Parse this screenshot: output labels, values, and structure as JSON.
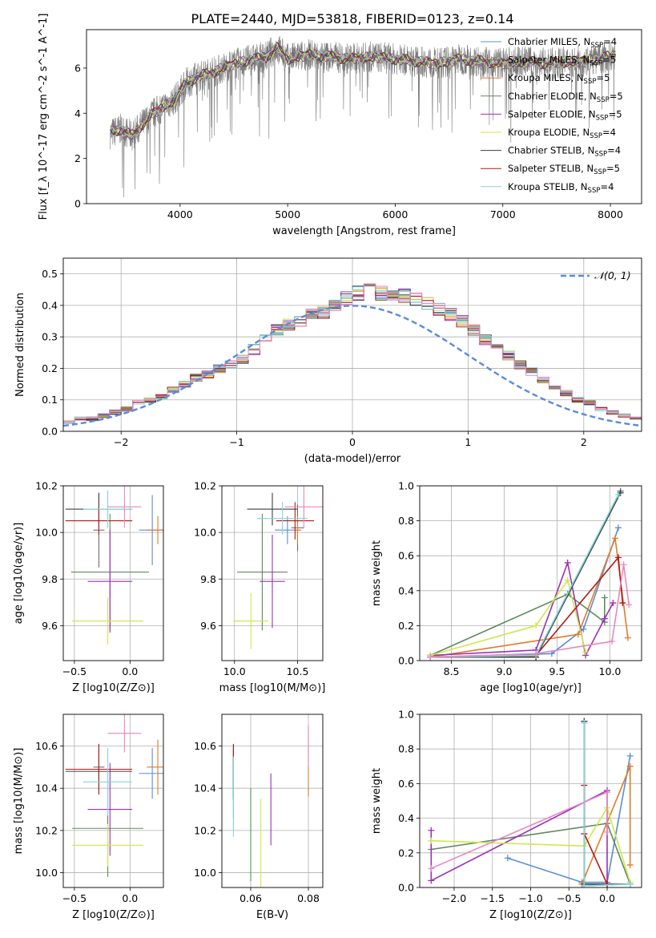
{
  "figure": {
    "title": "PLATE=2440, MJD=53818, FIBERID=0123, z=0.14"
  },
  "series": [
    {
      "name": "Chabrier MILES",
      "nssp": "4",
      "color": "#5b8bd8"
    },
    {
      "name": "Salpeter MILES",
      "nssp": "5",
      "color": "#6e6e6e"
    },
    {
      "name": "Kroupa MILES",
      "nssp": "5",
      "color": "#e07b28"
    },
    {
      "name": "Chabrier ELODIE",
      "nssp": "5",
      "color": "#5e8a5e"
    },
    {
      "name": "Salpeter ELODIE",
      "nssp": "5",
      "color": "#9b30b8"
    },
    {
      "name": "Kroupa ELODIE",
      "nssp": "4",
      "color": "#cde84a"
    },
    {
      "name": "Chabrier STELIB",
      "nssp": "4",
      "color": "#3f3f3f"
    },
    {
      "name": "Salpeter STELIB",
      "nssp": "5",
      "color": "#b01a1a"
    },
    {
      "name": "Kroupa STELIB",
      "nssp": "4",
      "color": "#7fd6e0"
    },
    {
      "name": "",
      "color": "#e887c0"
    }
  ],
  "chart_data": [
    {
      "id": "spectrum",
      "type": "line",
      "xlabel": "wavelength [Angstrom, rest frame]",
      "ylabel": "Flux [f_λ 10^-17 erg cm^-2 s^-1 A^-1]",
      "xlim": [
        3130,
        8290
      ],
      "ylim": [
        0,
        7.7
      ],
      "xticks": [
        4000,
        5000,
        6000,
        7000,
        8000
      ],
      "yticks": [
        0,
        2,
        4,
        6
      ],
      "grid": false,
      "legend": "top-right",
      "continuum": [
        [
          3350,
          3.1
        ],
        [
          3450,
          3.3
        ],
        [
          3550,
          3.0
        ],
        [
          3650,
          3.5
        ],
        [
          3750,
          4.0
        ],
        [
          3850,
          4.3
        ],
        [
          3950,
          4.6
        ],
        [
          4050,
          5.3
        ],
        [
          4150,
          5.6
        ],
        [
          4300,
          5.8
        ],
        [
          4450,
          6.1
        ],
        [
          4600,
          6.3
        ],
        [
          4800,
          6.5
        ],
        [
          4900,
          6.9
        ],
        [
          5000,
          6.4
        ],
        [
          5200,
          6.6
        ],
        [
          5400,
          6.5
        ],
        [
          5600,
          6.4
        ],
        [
          5800,
          6.5
        ],
        [
          6000,
          6.4
        ],
        [
          6200,
          6.3
        ],
        [
          6400,
          6.2
        ],
        [
          6600,
          6.4
        ],
        [
          6800,
          6.3
        ],
        [
          7000,
          6.2
        ],
        [
          7200,
          6.3
        ],
        [
          7400,
          6.2
        ],
        [
          7700,
          6.3
        ],
        [
          7900,
          6.4
        ],
        [
          8050,
          6.6
        ]
      ],
      "data_xrange": [
        3350,
        8050
      ]
    },
    {
      "id": "residuals",
      "type": "histogram",
      "xlabel": "(data-model)/error",
      "ylabel": "Normed distribution",
      "xlim": [
        -2.5,
        2.5
      ],
      "ylim": [
        0,
        0.55
      ],
      "xticks": [
        -2,
        -1,
        0,
        1,
        2
      ],
      "yticks": [
        0.0,
        0.1,
        0.2,
        0.3,
        0.4,
        0.5
      ],
      "grid": true,
      "legend": "top-right",
      "reference_label": "𝒩(0, 1)",
      "bin_width": 0.1,
      "base_distribution": [
        0.02,
        0.02,
        0.03,
        0.03,
        0.04,
        0.04,
        0.05,
        0.06,
        0.07,
        0.09,
        0.1,
        0.11,
        0.13,
        0.15,
        0.17,
        0.18,
        0.2,
        0.21,
        0.23,
        0.26,
        0.29,
        0.32,
        0.34,
        0.35,
        0.37,
        0.38,
        0.4,
        0.42,
        0.44,
        0.45,
        0.44,
        0.44,
        0.43,
        0.42,
        0.41,
        0.39,
        0.37,
        0.35,
        0.32,
        0.29,
        0.27,
        0.24,
        0.21,
        0.19,
        0.16,
        0.14,
        0.12,
        0.1,
        0.09,
        0.07,
        0.06,
        0.05,
        0.04,
        0.04,
        0.03,
        0.03
      ]
    },
    {
      "id": "age_vs_Z",
      "type": "errorbar",
      "xlabel": "Z [log10(Z/Z⊙)]",
      "ylabel": "age [log10(age/yr)]",
      "xlim": [
        -0.6,
        0.3
      ],
      "ylim": [
        9.45,
        10.2
      ],
      "xticks": [
        -0.5,
        0.0
      ],
      "yticks": [
        9.6,
        9.8,
        10.0,
        10.2
      ],
      "grid": true,
      "points": [
        {
          "s": 0,
          "x": 0.2,
          "y": 10.01,
          "xe": 0.12,
          "ye": 0.15
        },
        {
          "s": 1,
          "x": -0.28,
          "y": 10.01,
          "xe": 0.05,
          "ye": 0.16
        },
        {
          "s": 2,
          "x": 0.25,
          "y": 10.01,
          "xe": 0.1,
          "ye": 0.06
        },
        {
          "s": 3,
          "x": -0.18,
          "y": 9.83,
          "xe": 0.35,
          "ye": 0.25
        },
        {
          "s": 4,
          "x": -0.18,
          "y": 9.79,
          "xe": 0.2,
          "ye": 0.22
        },
        {
          "s": 5,
          "x": -0.2,
          "y": 9.62,
          "xe": 0.32,
          "ye": 0.1
        },
        {
          "s": 6,
          "x": -0.28,
          "y": 10.1,
          "xe": 0.3,
          "ye": 0.07
        },
        {
          "s": 7,
          "x": -0.28,
          "y": 10.05,
          "xe": 0.3,
          "ye": 0.06
        },
        {
          "s": 8,
          "x": -0.2,
          "y": 10.1,
          "xe": 0.22,
          "ye": 0.08
        },
        {
          "s": 9,
          "x": -0.05,
          "y": 10.11,
          "xe": 0.15,
          "ye": 0.09
        }
      ]
    },
    {
      "id": "age_vs_mass",
      "type": "errorbar",
      "xlabel": "mass [log10(M/M⊙)]",
      "ylabel": "",
      "xlim": [
        9.9,
        10.7
      ],
      "ylim": [
        9.45,
        10.2
      ],
      "xticks": [
        10.0,
        10.5
      ],
      "yticks": [
        9.6,
        9.8,
        10.0,
        10.2
      ],
      "grid": true,
      "points": [
        {
          "s": 0,
          "x": 10.42,
          "y": 10.01,
          "xe": 0.1,
          "ye": 0.06
        },
        {
          "s": 1,
          "x": 10.5,
          "y": 10.02,
          "xe": 0.05,
          "ye": 0.1
        },
        {
          "s": 2,
          "x": 10.5,
          "y": 10.01,
          "xe": 0.03,
          "ye": 0.06
        },
        {
          "s": 3,
          "x": 10.22,
          "y": 9.83,
          "xe": 0.2,
          "ye": 0.25
        },
        {
          "s": 4,
          "x": 10.3,
          "y": 9.79,
          "xe": 0.1,
          "ye": 0.2
        },
        {
          "s": 5,
          "x": 10.13,
          "y": 9.62,
          "xe": 0.14,
          "ye": 0.12
        },
        {
          "s": 6,
          "x": 10.3,
          "y": 10.1,
          "xe": 0.2,
          "ye": 0.07
        },
        {
          "s": 7,
          "x": 10.48,
          "y": 10.05,
          "xe": 0.15,
          "ye": 0.08
        },
        {
          "s": 8,
          "x": 10.38,
          "y": 10.06,
          "xe": 0.2,
          "ye": 0.07
        },
        {
          "s": 9,
          "x": 10.55,
          "y": 10.11,
          "xe": 0.15,
          "ye": 0.09
        }
      ]
    },
    {
      "id": "mass_weight_vs_age",
      "type": "line",
      "xlabel": "age [log10(age/yr)]",
      "ylabel": "mass weight",
      "xlim": [
        8.2,
        10.3
      ],
      "ylim": [
        0,
        1.0
      ],
      "xticks": [
        8.5,
        9.0,
        9.5,
        10.0
      ],
      "yticks": [
        0.0,
        0.2,
        0.4,
        0.6,
        0.8,
        1.0
      ],
      "grid": true,
      "lines": [
        {
          "s": 0,
          "pts": [
            [
              8.3,
              0.02
            ],
            [
              9.45,
              0.04
            ],
            [
              9.75,
              0.18
            ],
            [
              10.08,
              0.76
            ]
          ]
        },
        {
          "s": 1,
          "pts": [
            [
              8.3,
              0.02
            ],
            [
              9.3,
              0.02
            ],
            [
              10.1,
              0.97
            ]
          ]
        },
        {
          "s": 2,
          "pts": [
            [
              8.3,
              0.02
            ],
            [
              9.7,
              0.15
            ],
            [
              10.05,
              0.7
            ],
            [
              10.17,
              0.13
            ]
          ]
        },
        {
          "s": 3,
          "pts": [
            [
              8.3,
              0.03
            ],
            [
              9.6,
              0.38
            ],
            [
              9.95,
              0.22
            ],
            [
              9.95,
              0.36
            ]
          ]
        },
        {
          "s": 4,
          "pts": [
            [
              8.3,
              0.03
            ],
            [
              9.3,
              0.06
            ],
            [
              9.6,
              0.56
            ],
            [
              9.77,
              0.03
            ],
            [
              9.95,
              0.24
            ],
            [
              10.03,
              0.33
            ]
          ]
        },
        {
          "s": 5,
          "pts": [
            [
              8.3,
              0.03
            ],
            [
              9.3,
              0.2
            ],
            [
              9.6,
              0.46
            ],
            [
              9.77,
              0.05
            ]
          ]
        },
        {
          "s": 6,
          "pts": [
            [
              8.3,
              0.02
            ],
            [
              9.3,
              0.02
            ],
            [
              10.1,
              0.96
            ]
          ]
        },
        {
          "s": 7,
          "pts": [
            [
              8.3,
              0.02
            ],
            [
              9.3,
              0.03
            ],
            [
              10.08,
              0.59
            ],
            [
              10.12,
              0.33
            ]
          ]
        },
        {
          "s": 8,
          "pts": [
            [
              8.3,
              0.02
            ],
            [
              9.3,
              0.03
            ],
            [
              10.08,
              0.95
            ]
          ]
        },
        {
          "s": 9,
          "pts": [
            [
              8.3,
              0.02
            ],
            [
              9.3,
              0.04
            ],
            [
              10.02,
              0.11
            ],
            [
              10.13,
              0.55
            ],
            [
              10.18,
              0.32
            ]
          ]
        }
      ]
    },
    {
      "id": "mass_vs_Z",
      "type": "errorbar",
      "xlabel": "Z [log10(Z/Z⊙)]",
      "ylabel": "mass [log10(M/M⊙)]",
      "xlim": [
        -0.6,
        0.3
      ],
      "ylim": [
        9.93,
        10.75
      ],
      "xticks": [
        -0.5,
        0.0
      ],
      "yticks": [
        10.0,
        10.2,
        10.4,
        10.6
      ],
      "grid": true,
      "points": [
        {
          "s": 0,
          "x": 0.2,
          "y": 10.47,
          "xe": 0.12,
          "ye": 0.12
        },
        {
          "s": 1,
          "x": -0.28,
          "y": 10.5,
          "xe": 0.05,
          "ye": 0.1
        },
        {
          "s": 2,
          "x": 0.25,
          "y": 10.5,
          "xe": 0.1,
          "ye": 0.13
        },
        {
          "s": 3,
          "x": -0.2,
          "y": 10.21,
          "xe": 0.32,
          "ye": 0.23
        },
        {
          "s": 4,
          "x": -0.18,
          "y": 10.3,
          "xe": 0.2,
          "ye": 0.22
        },
        {
          "s": 5,
          "x": -0.2,
          "y": 10.13,
          "xe": 0.32,
          "ye": 0.1
        },
        {
          "s": 6,
          "x": -0.28,
          "y": 10.48,
          "xe": 0.3,
          "ye": 0.1
        },
        {
          "s": 7,
          "x": -0.28,
          "y": 10.49,
          "xe": 0.3,
          "ye": 0.12
        },
        {
          "s": 8,
          "x": -0.2,
          "y": 10.43,
          "xe": 0.22,
          "ye": 0.16
        },
        {
          "s": 9,
          "x": -0.05,
          "y": 10.66,
          "xe": 0.15,
          "ye": 0.09
        }
      ]
    },
    {
      "id": "mass_vs_ebv",
      "type": "errorbar",
      "xlabel": "E(B-V)",
      "ylabel": "",
      "xlim": [
        0.05,
        0.085
      ],
      "ylim": [
        9.93,
        10.75
      ],
      "xticks": [
        0.06,
        0.08
      ],
      "yticks": [
        10.0,
        10.2,
        10.4,
        10.6
      ],
      "grid": true,
      "points": [
        {
          "s": 0,
          "x": 0.054,
          "y": 10.4,
          "xe": 0,
          "ye": 0.14
        },
        {
          "s": 1,
          "x": 0.054,
          "y": 10.46,
          "xe": 0,
          "ye": 0.12
        },
        {
          "s": 2,
          "x": 0.08,
          "y": 10.52,
          "xe": 0,
          "ye": 0.16
        },
        {
          "s": 3,
          "x": 0.06,
          "y": 10.18,
          "xe": 0,
          "ye": 0.22
        },
        {
          "s": 4,
          "x": 0.067,
          "y": 10.3,
          "xe": 0,
          "ye": 0.17
        },
        {
          "s": 5,
          "x": 0.0635,
          "y": 10.12,
          "xe": 0,
          "ye": 0.23
        },
        {
          "s": 6,
          "x": 0.054,
          "y": 10.48,
          "xe": 0,
          "ye": 0.13
        },
        {
          "s": 7,
          "x": 0.054,
          "y": 10.5,
          "xe": 0,
          "ye": 0.1
        },
        {
          "s": 8,
          "x": 0.054,
          "y": 10.36,
          "xe": 0,
          "ye": 0.19
        },
        {
          "s": 9,
          "x": 0.08,
          "y": 10.6,
          "xe": 0,
          "ye": 0.1
        }
      ]
    },
    {
      "id": "mass_weight_vs_Z",
      "type": "line",
      "xlabel": "Z [log10(Z/Z⊙)]",
      "ylabel": "mass weight",
      "xlim": [
        -2.45,
        0.45
      ],
      "ylim": [
        0,
        1.0
      ],
      "xticks": [
        -2.0,
        -1.5,
        -1.0,
        -0.5,
        0.0
      ],
      "yticks": [
        0.0,
        0.2,
        0.4,
        0.6,
        0.8,
        1.0
      ],
      "grid": true,
      "lines": [
        {
          "s": 0,
          "pts": [
            [
              -1.3,
              0.17
            ],
            [
              -0.33,
              0.03
            ],
            [
              0.0,
              0.03
            ],
            [
              0.3,
              0.76
            ]
          ]
        },
        {
          "s": 1,
          "pts": [
            [
              -0.3,
              0.96
            ],
            [
              -0.3,
              0.01
            ],
            [
              0.3,
              0.02
            ]
          ]
        },
        {
          "s": 2,
          "pts": [
            [
              -0.33,
              0.02
            ],
            [
              0.3,
              0.7
            ],
            [
              0.3,
              0.13
            ]
          ]
        },
        {
          "s": 3,
          "pts": [
            [
              -2.3,
              0.22
            ],
            [
              0.0,
              0.37
            ],
            [
              0.3,
              0.02
            ]
          ]
        },
        {
          "s": 4,
          "pts": [
            [
              -2.3,
              0.33
            ],
            [
              -2.3,
              0.04
            ],
            [
              0.0,
              0.56
            ],
            [
              0.0,
              0.02
            ]
          ]
        },
        {
          "s": 5,
          "pts": [
            [
              -2.3,
              0.27
            ],
            [
              -0.3,
              0.24
            ],
            [
              0.0,
              0.46
            ],
            [
              0.3,
              0.03
            ]
          ]
        },
        {
          "s": 6,
          "pts": [
            [
              -0.3,
              0.96
            ],
            [
              -0.3,
              0.02
            ],
            [
              0.3,
              0.02
            ]
          ]
        },
        {
          "s": 7,
          "pts": [
            [
              -0.3,
              0.59
            ],
            [
              -0.3,
              0.31
            ],
            [
              0.0,
              0.02
            ]
          ]
        },
        {
          "s": 8,
          "pts": [
            [
              -0.3,
              0.95
            ],
            [
              -0.3,
              0.01
            ],
            [
              0.3,
              0.02
            ]
          ]
        },
        {
          "s": 9,
          "pts": [
            [
              -2.3,
              0.11
            ],
            [
              0.0,
              0.55
            ],
            [
              0.0,
              0.32
            ]
          ]
        }
      ]
    }
  ]
}
